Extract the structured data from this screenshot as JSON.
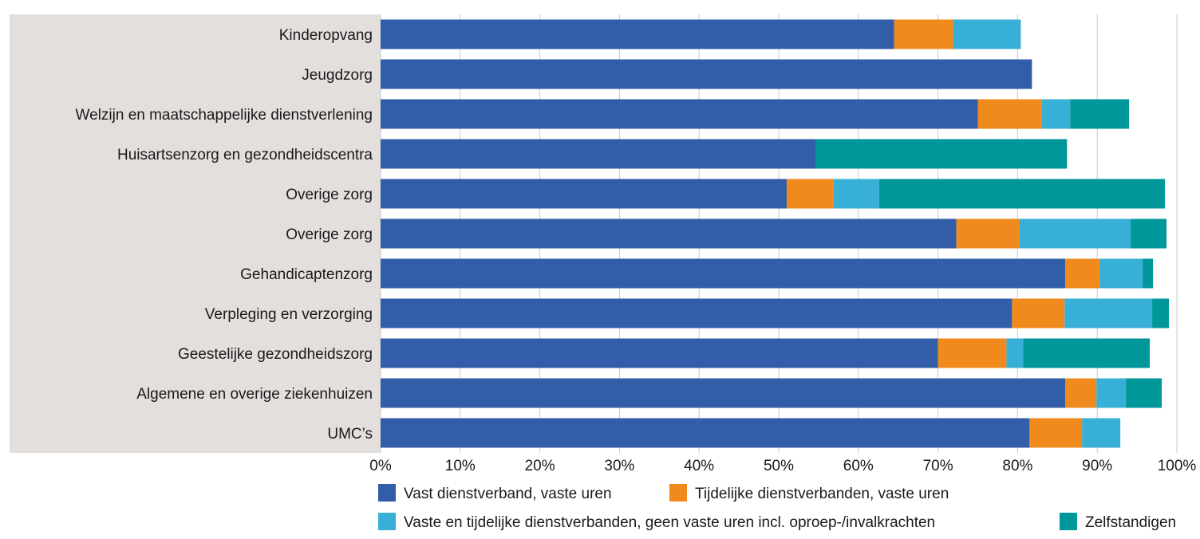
{
  "chart_data": {
    "type": "bar",
    "orientation": "horizontal",
    "stacked": true,
    "categories": [
      "Kinderopvang",
      "Jeugdzorg",
      "Welzijn en maatschappelijke dienstverlening",
      "Huisartsenzorg en gezondheidscentra",
      "Overige zorg",
      "Overige zorg",
      "Gehandicaptenzorg",
      "Verpleging en verzorging",
      "Geestelijke gezondheidszorg",
      "Algemene en overige ziekenhuizen",
      "UMC’s"
    ],
    "series": [
      {
        "name": "Vast dienstverband, vaste uren",
        "color": "#325ea9",
        "values": [
          64.5,
          81.8,
          75.0,
          54.7,
          51.0,
          72.3,
          86.0,
          79.3,
          70.0,
          86.0,
          81.5
        ]
      },
      {
        "name": "Tijdelijke dienstverbanden, vaste uren",
        "color": "#f08a1d",
        "values": [
          7.4,
          0,
          8.0,
          0,
          5.9,
          7.9,
          4.3,
          6.6,
          8.6,
          3.9,
          6.6
        ]
      },
      {
        "name": "Vaste en tijdelijke dienstverbanden, geen vaste uren incl. oproep-/invalkrachten",
        "color": "#38afd6",
        "values": [
          8.5,
          0,
          3.6,
          0,
          5.7,
          14.0,
          5.4,
          11.0,
          2.1,
          3.7,
          4.8
        ]
      },
      {
        "name": "Zelfstandigen",
        "color": "#00979b",
        "values": [
          0,
          0,
          7.4,
          31.5,
          35.9,
          4.5,
          1.3,
          2.1,
          15.9,
          4.5,
          0
        ]
      }
    ],
    "xlim": [
      0,
      100
    ],
    "xticks": [
      "0%",
      "10%",
      "20%",
      "30%",
      "40%",
      "50%",
      "60%",
      "70%",
      "80%",
      "90%",
      "100%"
    ],
    "grid": true,
    "legend_position": "bottom",
    "colors": {
      "label_band": "#e3dfdd",
      "grid": "#c8c8c8"
    }
  }
}
